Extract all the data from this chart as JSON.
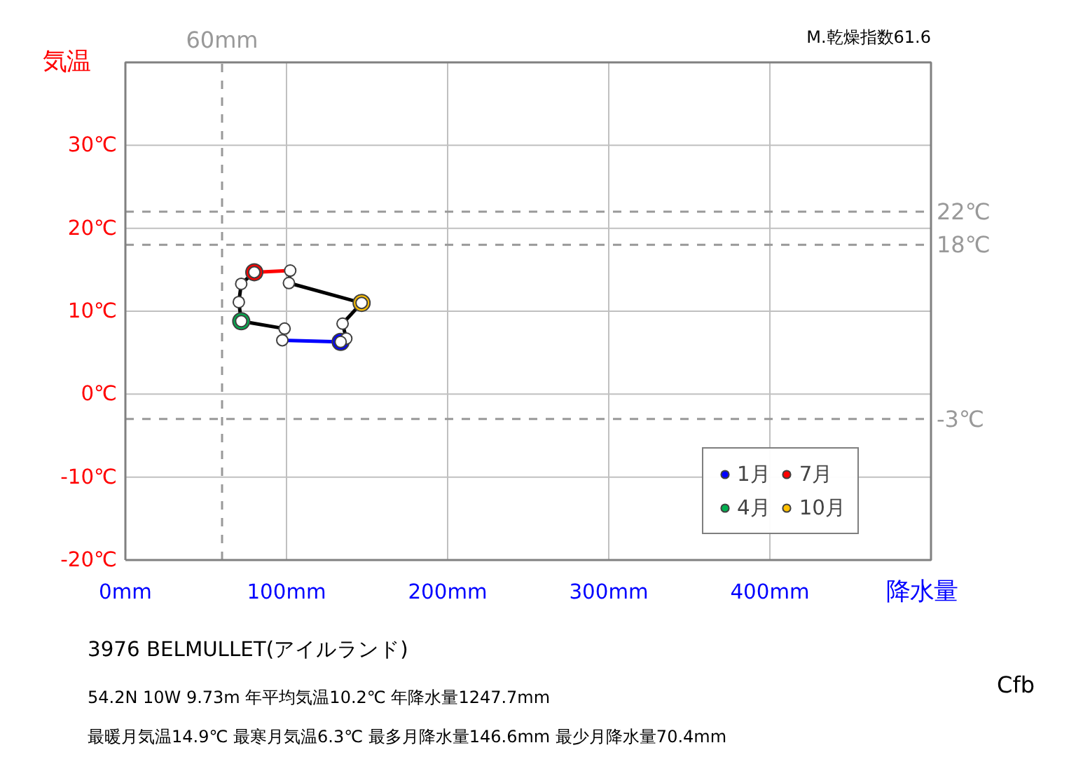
{
  "chart_data": {
    "type": "line",
    "xlabel": "降水量",
    "ylabel": "気温",
    "xlim": [
      0,
      500
    ],
    "ylim": [
      -20,
      40
    ],
    "xticks": [
      {
        "value": 0,
        "label": "0mm"
      },
      {
        "value": 100,
        "label": "100mm"
      },
      {
        "value": 200,
        "label": "200mm"
      },
      {
        "value": 300,
        "label": "300mm"
      },
      {
        "value": 400,
        "label": "400mm"
      },
      {
        "value": 500,
        "label": null
      }
    ],
    "yticks": [
      {
        "value": -20,
        "label": "-20℃"
      },
      {
        "value": -10,
        "label": "-10℃"
      },
      {
        "value": 0,
        "label": "0℃"
      },
      {
        "value": 10,
        "label": "10℃"
      },
      {
        "value": 20,
        "label": "20℃"
      },
      {
        "value": 30,
        "label": "30℃"
      },
      {
        "value": 40,
        "label": null
      }
    ],
    "grid": true,
    "legend": "bottom right",
    "marker": "circle",
    "line_style": "solid",
    "series": [
      {
        "color": "#000000",
        "x": [
          97.4,
          98.8,
          71.9,
          70.4,
          71.9,
          80.0
        ],
        "values": [
          6.5,
          7.9,
          8.8,
          11.1,
          13.3,
          14.7
        ]
      },
      {
        "color": "#000000",
        "x": [
          102.3,
          101.5,
          146.6,
          134.8,
          137.1,
          133.6
        ],
        "values": [
          14.9,
          13.4,
          11.0,
          8.5,
          6.7,
          6.3
        ]
      },
      {
        "color": "#0000ff",
        "marker": "none",
        "x": [
          133.6,
          97.4
        ],
        "values": [
          6.3,
          6.5
        ]
      },
      {
        "color": "#ff0000",
        "marker": "none",
        "x": [
          80.0,
          102.3
        ],
        "values": [
          14.7,
          14.9
        ]
      },
      {
        "type": "scatter",
        "name": "1月",
        "color": "#0000ff",
        "x": [
          133.6
        ],
        "values": [
          6.3
        ]
      },
      {
        "type": "scatter",
        "name": "4月",
        "color": "#00b050",
        "x": [
          71.9
        ],
        "values": [
          8.8
        ]
      },
      {
        "type": "scatter",
        "name": "7月",
        "color": "#ff0000",
        "x": [
          80.0
        ],
        "values": [
          14.7
        ]
      },
      {
        "type": "scatter",
        "name": "10月",
        "color": "#ffc000",
        "x": [
          146.6
        ],
        "values": [
          11.0
        ]
      }
    ],
    "ref_lines": [
      {
        "axis": "y",
        "value": 22,
        "label": "22℃",
        "color": "#999999",
        "line_style": "dashed"
      },
      {
        "axis": "y",
        "value": 18,
        "label": "18℃",
        "color": "#999999",
        "line_style": "dashed"
      },
      {
        "axis": "y",
        "value": -3,
        "label": "-3℃",
        "color": "#999999",
        "line_style": "dashed"
      },
      {
        "axis": "x",
        "value": 60,
        "label": "60mm",
        "color": "#999999",
        "line_style": "dashed"
      }
    ],
    "annotations": [
      "M.乾燥指数61.6",
      "3976   BELMULLET(アイルランド)",
      "54.2N  10W 9.73m  年平均気温10.2℃ 年降水量1247.7mm",
      "最暖月気温14.9℃ 最寒月気温6.3℃ 最多月降水量146.6mm 最少月降水量70.4mm",
      "Cfb"
    ]
  }
}
